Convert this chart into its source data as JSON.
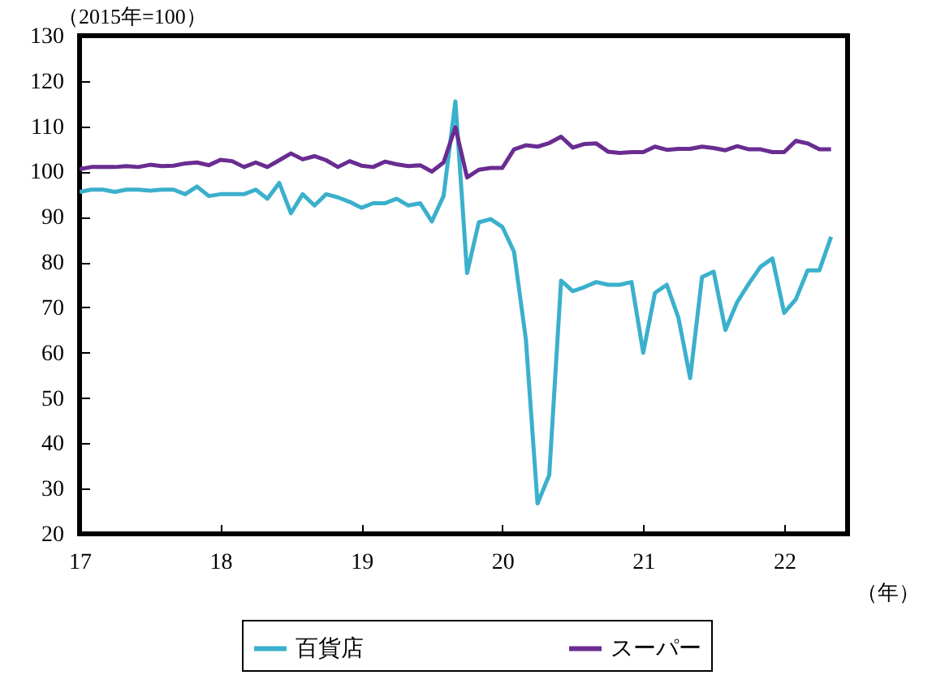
{
  "chart_data": {
    "type": "line",
    "ylabel": "（2015年=100）",
    "xlabel": "（年）",
    "x": [
      17,
      17.083,
      17.167,
      17.25,
      17.333,
      17.417,
      17.5,
      17.583,
      17.667,
      17.75,
      17.833,
      17.917,
      18,
      18.083,
      18.167,
      18.25,
      18.333,
      18.417,
      18.5,
      18.583,
      18.667,
      18.75,
      18.833,
      18.917,
      19,
      19.083,
      19.167,
      19.25,
      19.333,
      19.417,
      19.5,
      19.583,
      19.667,
      19.75,
      19.833,
      19.917,
      20,
      20.083,
      20.167,
      20.25,
      20.333,
      20.417,
      20.5,
      20.583,
      20.667,
      20.75,
      20.833,
      20.917,
      21,
      21.083,
      21.167,
      21.25,
      21.333,
      21.417,
      21.5,
      21.583,
      21.667,
      21.75,
      21.833,
      21.917,
      22,
      22.083,
      22.167,
      22.25,
      22.333
    ],
    "series": [
      {
        "name": "百貨店",
        "color": "#3bb0cc",
        "values": [
          95.5,
          96,
          96,
          95.5,
          96,
          96,
          95.8,
          96,
          96,
          95,
          96.7,
          94.6,
          95,
          95,
          95,
          96,
          94,
          97.5,
          90.8,
          95,
          92.5,
          95,
          94.3,
          93.3,
          92,
          93,
          93,
          94,
          92.5,
          93,
          89,
          94.6,
          115.5,
          77.6,
          88.8,
          89.5,
          87.8,
          82.3,
          63,
          26.7,
          33,
          75.9,
          73.6,
          74.5,
          75.6,
          75,
          75,
          75.6,
          60,
          73.2,
          75,
          67.7,
          54.4,
          76.7,
          77.9,
          65,
          71.2,
          75.3,
          79,
          80.8,
          68.8,
          71.8,
          78.2,
          78.2,
          85.6
        ]
      },
      {
        "name": "スーパー",
        "color": "#6a2c91",
        "values": [
          100.5,
          101,
          101,
          101,
          101.2,
          101,
          101.5,
          101.2,
          101.3,
          101.8,
          102,
          101.4,
          102.6,
          102.3,
          101,
          102,
          101,
          102.5,
          104,
          102.7,
          103.4,
          102.5,
          101,
          102.3,
          101.3,
          101,
          102.2,
          101.6,
          101.2,
          101.4,
          100,
          102,
          109.8,
          98.7,
          100.4,
          100.8,
          100.8,
          104.9,
          105.8,
          105.5,
          106.3,
          107.7,
          105.3,
          106.1,
          106.2,
          104.4,
          104.1,
          104.3,
          104.3,
          105.5,
          104.8,
          105,
          105,
          105.5,
          105.2,
          104.7,
          105.6,
          104.9,
          104.9,
          104.3,
          104.3,
          106.8,
          106.2,
          104.9,
          104.9
        ]
      }
    ],
    "xlim": [
      17,
      22.45
    ],
    "xticks": [
      17,
      18,
      19,
      20,
      21,
      22
    ],
    "ylim": [
      20,
      130
    ],
    "yticks": [
      20,
      30,
      40,
      50,
      60,
      70,
      80,
      90,
      100,
      110,
      120,
      130
    ],
    "legend": "bottom",
    "grid": false
  }
}
